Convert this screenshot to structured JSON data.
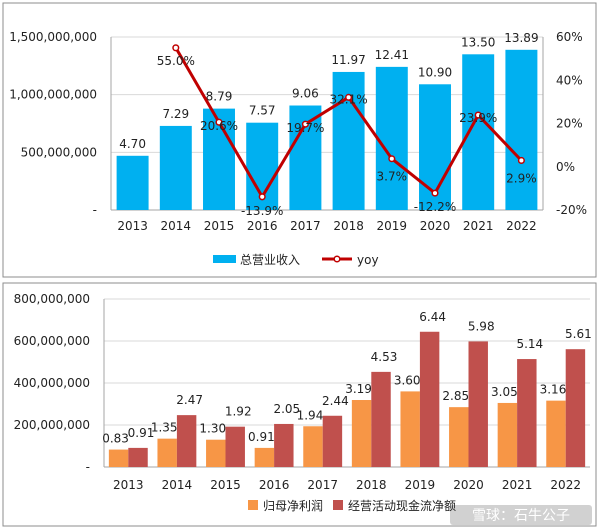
{
  "chart_data": [
    {
      "type": "bar",
      "combo": "bar+line",
      "categories": [
        "2013",
        "2014",
        "2015",
        "2016",
        "2017",
        "2018",
        "2019",
        "2020",
        "2021",
        "2022"
      ],
      "series": [
        {
          "name": "总营业收入",
          "type": "bar",
          "axis": "left",
          "color": "#00B0F0",
          "values": [
            470000000,
            729000000,
            879000000,
            757000000,
            906000000,
            1197000000,
            1241000000,
            1090000000,
            1350000000,
            1389000000
          ],
          "labels": [
            "4.70",
            "7.29",
            "8.79",
            "7.57",
            "9.06",
            "11.97",
            "12.41",
            "10.90",
            "13.50",
            "13.89"
          ]
        },
        {
          "name": "yoy",
          "type": "line",
          "axis": "right",
          "color": "#C00000",
          "values": [
            null,
            55.0,
            20.6,
            -13.9,
            19.7,
            32.1,
            3.7,
            -12.2,
            23.9,
            2.9
          ],
          "labels": [
            "",
            "55.0%",
            "20.6%",
            "-13.9%",
            "19.7%",
            "32.1%",
            "3.7%",
            "-12.2%",
            "23.9%",
            "2.9%"
          ]
        }
      ],
      "y_left": {
        "min": 0,
        "max": 1500000000,
        "ticks": [
          0,
          500000000,
          1000000000,
          1500000000
        ],
        "tick_labels": [
          "-",
          "500,000,000",
          "1,000,000,000",
          "1,500,000,000"
        ]
      },
      "y_right": {
        "min": -20,
        "max": 60,
        "ticks": [
          -20,
          0,
          20,
          40,
          60
        ],
        "tick_labels": [
          "-20%",
          "0%",
          "20%",
          "40%",
          "60%"
        ]
      },
      "grid": true,
      "legend": "bottom"
    },
    {
      "type": "bar",
      "categories": [
        "2013",
        "2014",
        "2015",
        "2016",
        "2017",
        "2018",
        "2019",
        "2020",
        "2021",
        "2022"
      ],
      "series": [
        {
          "name": "归母净利润",
          "color": "#F79646",
          "values": [
            83000000,
            135000000,
            130000000,
            91000000,
            194000000,
            319000000,
            360000000,
            285000000,
            305000000,
            316000000
          ],
          "labels": [
            "0.83",
            "1.35",
            "1.30",
            "0.91",
            "1.94",
            "3.19",
            "3.60",
            "2.85",
            "3.05",
            "3.16"
          ]
        },
        {
          "name": "经营活动现金流净额",
          "color": "#C0504D",
          "values": [
            91000000,
            247000000,
            192000000,
            205000000,
            244000000,
            453000000,
            644000000,
            598000000,
            514000000,
            561000000
          ],
          "labels": [
            "0.91",
            "2.47",
            "1.92",
            "2.05",
            "2.44",
            "4.53",
            "6.44",
            "5.98",
            "5.14",
            "5.61"
          ]
        }
      ],
      "y_left": {
        "min": 0,
        "max": 800000000,
        "ticks": [
          0,
          200000000,
          400000000,
          600000000,
          800000000
        ],
        "tick_labels": [
          "-",
          "200,000,000",
          "400,000,000",
          "600,000,000",
          "800,000,000"
        ]
      },
      "grid": true,
      "legend": "bottom"
    }
  ],
  "watermark": "雪球：石牛公子",
  "colors": {
    "frame": "#8C8C8C",
    "grid": "#D9D9D9",
    "axis": "#A6A6A6"
  }
}
